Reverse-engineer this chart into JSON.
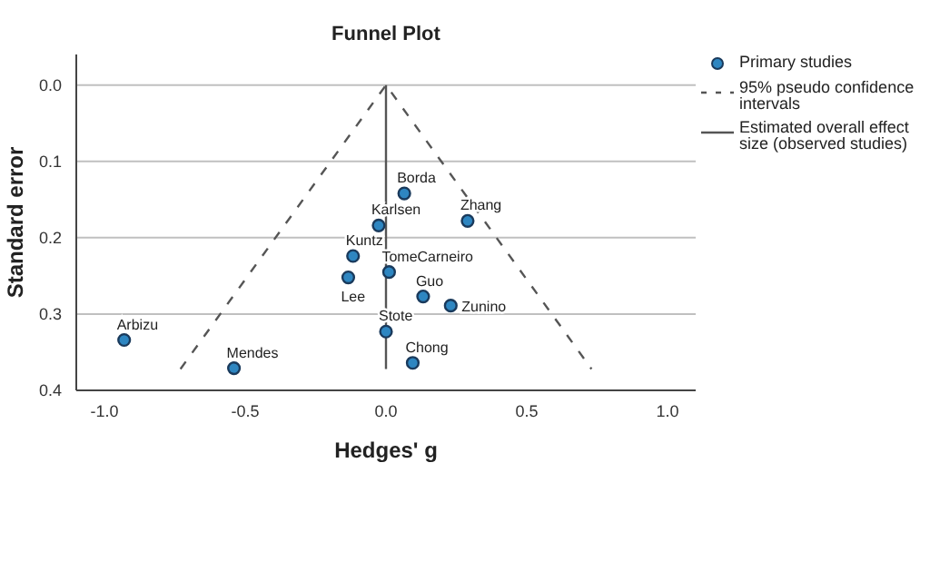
{
  "chart_data": {
    "type": "scatter",
    "title": "Funnel Plot",
    "xlabel": "Hedges' g",
    "ylabel": "Standard error",
    "xlim": [
      -1.1,
      1.1
    ],
    "ylim": [
      0.4,
      -0.04
    ],
    "xticks": [
      {
        "value": -1,
        "label": "-1.0"
      },
      {
        "value": -0.5,
        "label": "-0.5"
      },
      {
        "value": 0,
        "label": "0.0"
      },
      {
        "value": 0.5,
        "label": "0.5"
      },
      {
        "value": 1,
        "label": "1.0"
      }
    ],
    "yticks": [
      {
        "value": 0,
        "label": "0.0"
      },
      {
        "value": 0.1,
        "label": "0.1"
      },
      {
        "value": 0.2,
        "label": "0.2"
      },
      {
        "value": 0.3,
        "label": "0.3"
      },
      {
        "value": 0.4,
        "label": "0.4"
      }
    ],
    "grid": "y",
    "legend": "right",
    "series": [
      {
        "name": "Primary studies",
        "marker": "circle",
        "color": "#2e86c1",
        "x": [
          0.065,
          -0.026,
          0.29,
          -0.117,
          0.011,
          -0.134,
          0.132,
          0.23,
          0,
          -0.93,
          0.095,
          -0.54
        ],
        "values": [
          0.142,
          0.184,
          0.178,
          0.224,
          0.245,
          0.252,
          0.277,
          0.289,
          0.323,
          0.334,
          0.364,
          0.371
        ]
      },
      {
        "name": "95% pseudo confidence intervals",
        "type": "line",
        "marker": "none",
        "color": "#555555",
        "line_style": "dashed",
        "x": [
          -0.73,
          0,
          0.73
        ],
        "values": [
          0.372,
          0,
          0.372
        ]
      },
      {
        "name": "Estimated overall effect size (observed studies)",
        "type": "line",
        "marker": "none",
        "color": "#555555",
        "line_style": "solid",
        "x": [
          0,
          0
        ],
        "values": [
          0,
          0.372
        ]
      }
    ],
    "annotations": [
      {
        "text": "Borda",
        "x": 0.065,
        "y": 0.142
      },
      {
        "text": "Karlsen",
        "x": -0.026,
        "y": 0.184
      },
      {
        "text": "Zhang",
        "x": 0.29,
        "y": 0.178
      },
      {
        "text": "Kuntz",
        "x": -0.117,
        "y": 0.224
      },
      {
        "text": "TomeCarneiro",
        "x": 0.011,
        "y": 0.245
      },
      {
        "text": "Lee",
        "x": -0.134,
        "y": 0.252
      },
      {
        "text": "Guo",
        "x": 0.132,
        "y": 0.277
      },
      {
        "text": "Zunino",
        "x": 0.23,
        "y": 0.289
      },
      {
        "text": "Stote",
        "x": 0,
        "y": 0.323
      },
      {
        "text": "Arbizu",
        "x": -0.93,
        "y": 0.334
      },
      {
        "text": "Chong",
        "x": 0.095,
        "y": 0.364
      },
      {
        "text": "Mendes",
        "x": -0.54,
        "y": 0.371
      }
    ]
  }
}
